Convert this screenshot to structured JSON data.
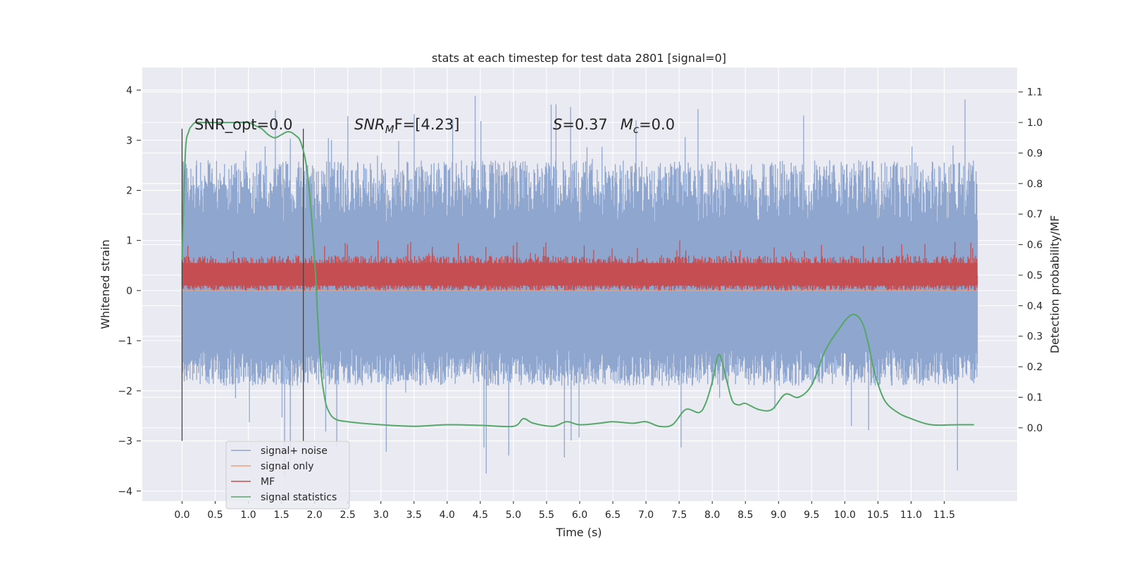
{
  "chart_data": {
    "type": "line",
    "title": "stats at each timestep for test data 2801 [signal=0]",
    "xlabel": "Time (s)",
    "ylabel": "Whitened strain",
    "y2label": "Detection probability/MF",
    "xlim": [
      -0.6,
      12.6
    ],
    "ylim": [
      -4.2,
      4.45
    ],
    "y2lim": [
      -0.24,
      1.18
    ],
    "x_ticks": [
      0.0,
      0.5,
      1.0,
      1.5,
      2.0,
      2.5,
      3.0,
      3.5,
      4.0,
      4.5,
      5.0,
      5.5,
      6.0,
      6.5,
      7.0,
      7.5,
      8.0,
      8.5,
      9.0,
      9.5,
      10.0,
      10.5,
      11.0,
      11.5
    ],
    "x_tick_labels": [
      "0.0",
      "0.5",
      "1.0",
      "1.5",
      "2.0",
      "2.5",
      "3.0",
      "3.5",
      "4.0",
      "4.5",
      "5.0",
      "5.5",
      "6.0",
      "6.5",
      "7.0",
      "7.5",
      "8.0",
      "8.5",
      "9.0",
      "9.5",
      "10.0",
      "10.5",
      "11.0",
      "11.5"
    ],
    "y_ticks": [
      -4,
      -3,
      -2,
      -1,
      0,
      1,
      2,
      3,
      4
    ],
    "y_tick_labels": [
      "−4",
      "−3",
      "−2",
      "−1",
      "0",
      "1",
      "2",
      "3",
      "4"
    ],
    "y2_ticks": [
      0.0,
      0.1,
      0.2,
      0.3,
      0.4,
      0.5,
      0.6,
      0.7,
      0.8,
      0.9,
      1.0,
      1.1
    ],
    "y2_tick_labels": [
      "0.0",
      "0.1",
      "0.2",
      "0.3",
      "0.4",
      "0.5",
      "0.6",
      "0.7",
      "0.8",
      "0.9",
      "1.0",
      "1.1"
    ],
    "grid": true,
    "legend_position": "bottom-left",
    "annotations": {
      "snr_opt": "SNR_opt=0.0",
      "snr_mf_label": "SNR",
      "snr_mf_sub": "M",
      "snr_mf_suffix": "F=[4.23]",
      "s_label": "S",
      "s_value": "=0.37",
      "mc_label": "M",
      "mc_sub": "c",
      "mc_value": "=0.0"
    },
    "vertical_markers": [
      0.0,
      1.83
    ],
    "series": [
      {
        "name": "signal+ noise",
        "color": "#8fa6cf",
        "axis": "left",
        "x_range": [
          0.0,
          12.0
        ],
        "typical_range": [
          -1.9,
          2.6
        ],
        "dense_band": [
          -1.15,
          1.35
        ],
        "extremes": {
          "max": 3.9,
          "min": -3.7
        }
      },
      {
        "name": "signal only",
        "color": "#e8a07e",
        "axis": "left",
        "x": [
          0.0,
          12.0
        ],
        "y": [
          0.0,
          0.0
        ]
      },
      {
        "name": "MF",
        "color": "#c44e52",
        "axis": "left",
        "x_range": [
          0.0,
          12.0
        ],
        "typical_range": [
          0.0,
          0.7
        ],
        "extremes": {
          "max": 1.0,
          "min": -0.05
        }
      },
      {
        "name": "signal statistics",
        "color": "#55a868",
        "axis": "right",
        "x": [
          0.0,
          0.05,
          0.1,
          0.15,
          0.2,
          0.3,
          0.5,
          0.8,
          1.0,
          1.1,
          1.2,
          1.3,
          1.4,
          1.5,
          1.6,
          1.7,
          1.8,
          1.9,
          2.0,
          2.05,
          2.1,
          2.15,
          2.2,
          2.3,
          2.5,
          3.0,
          3.5,
          4.0,
          4.5,
          5.0,
          5.15,
          5.3,
          5.6,
          5.8,
          6.0,
          6.3,
          6.5,
          6.8,
          7.0,
          7.2,
          7.4,
          7.6,
          7.8,
          7.9,
          8.0,
          8.1,
          8.2,
          8.3,
          8.4,
          8.5,
          8.7,
          8.9,
          9.1,
          9.3,
          9.5,
          9.7,
          9.9,
          10.1,
          10.25,
          10.35,
          10.45,
          10.6,
          10.8,
          11.0,
          11.3,
          11.7,
          11.95
        ],
        "y": [
          0.55,
          0.9,
          0.97,
          0.99,
          1.0,
          1.0,
          1.0,
          1.0,
          1.0,
          0.99,
          0.98,
          0.96,
          0.95,
          0.96,
          0.97,
          0.96,
          0.93,
          0.82,
          0.55,
          0.35,
          0.18,
          0.1,
          0.06,
          0.03,
          0.02,
          0.01,
          0.005,
          0.01,
          0.008,
          0.005,
          0.03,
          0.015,
          0.005,
          0.02,
          0.01,
          0.015,
          0.02,
          0.015,
          0.02,
          0.005,
          0.01,
          0.06,
          0.05,
          0.08,
          0.15,
          0.24,
          0.17,
          0.09,
          0.075,
          0.08,
          0.06,
          0.06,
          0.11,
          0.1,
          0.14,
          0.25,
          0.32,
          0.37,
          0.35,
          0.28,
          0.18,
          0.09,
          0.05,
          0.03,
          0.01,
          0.01,
          0.01
        ]
      }
    ]
  }
}
